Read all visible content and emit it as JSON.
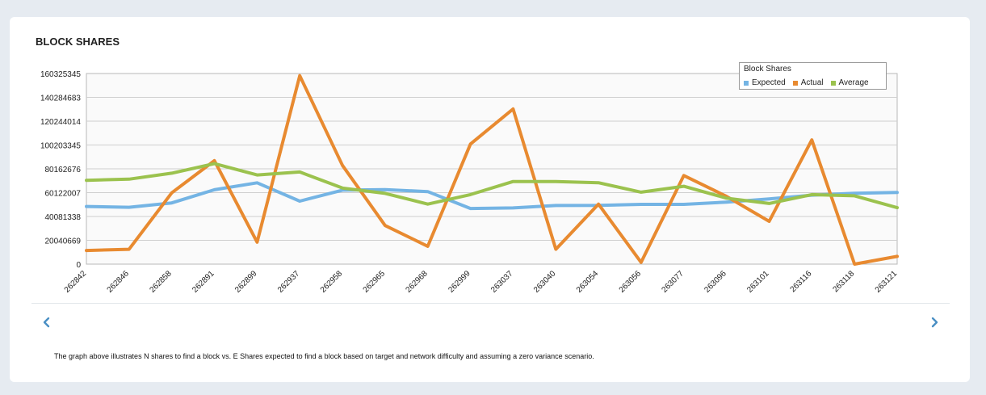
{
  "card": {
    "title": "BLOCK SHARES",
    "note": "The graph above illustrates N shares to find a block vs. E Shares expected to find a block based on target and network difficulty and assuming a zero variance scenario."
  },
  "nav": {
    "prev_icon": "chevron-left-icon",
    "next_icon": "chevron-right-icon",
    "color": "#4a8fc4"
  },
  "chart_data": {
    "type": "line",
    "legend_title": "Block Shares",
    "legend_position": "top-right",
    "grid": true,
    "ylim": [
      0,
      160325345
    ],
    "yticks": [
      0,
      20040669,
      40081338,
      60122007,
      80162676,
      100203345,
      120244014,
      140284683,
      160325345
    ],
    "ytick_labels": [
      "0",
      "20040669",
      "40081338",
      "60122007",
      "80162676",
      "100203345",
      "120244014",
      "140284683",
      "160325345"
    ],
    "categories": [
      "262842",
      "262846",
      "262858",
      "262891",
      "262899",
      "262937",
      "262958",
      "262965",
      "262968",
      "262999",
      "263037",
      "263040",
      "263054",
      "263056",
      "263077",
      "263096",
      "263101",
      "263116",
      "263118",
      "263121"
    ],
    "series": [
      {
        "name": "Expected",
        "color": "#74b4e4",
        "values": [
          48500000,
          47800000,
          51500000,
          62600000,
          68400000,
          53000000,
          62200000,
          62700000,
          61000000,
          46800000,
          47300000,
          49300000,
          49400000,
          50300000,
          50300000,
          52200000,
          54800000,
          58000000,
          59600000,
          60300000
        ]
      },
      {
        "name": "Actual",
        "color": "#e88a30",
        "values": [
          11500000,
          12500000,
          60000000,
          87000000,
          18500000,
          158500000,
          83000000,
          32500000,
          15000000,
          101000000,
          130500000,
          12500000,
          50500000,
          1500000,
          74500000,
          57000000,
          36000000,
          104500000,
          0,
          6500000
        ]
      },
      {
        "name": "Average",
        "color": "#9bc24e",
        "values": [
          70500000,
          71500000,
          76500000,
          84500000,
          75000000,
          77500000,
          64000000,
          59500000,
          50500000,
          58500000,
          69500000,
          69500000,
          68500000,
          60500000,
          65500000,
          55500000,
          51000000,
          58500000,
          57500000,
          47500000
        ]
      }
    ]
  }
}
